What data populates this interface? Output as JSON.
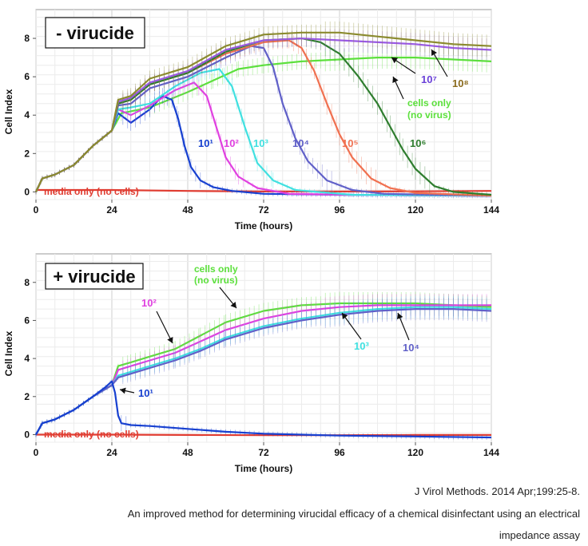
{
  "chart_data": [
    {
      "type": "line",
      "title": "- virucide",
      "xlabel": "Time (hours)",
      "ylabel": "Cell Index",
      "xlim": [
        0,
        144
      ],
      "ylim": [
        -0.4,
        9.5
      ],
      "xticks": [
        "0",
        "24",
        "48",
        "72",
        "96",
        "120",
        "144"
      ],
      "yticks": [
        "0",
        "2",
        "4",
        "6",
        "8"
      ],
      "grid": true,
      "series": [
        {
          "name": "media only (no cells)",
          "color": "#e03c31",
          "x": [
            0,
            24,
            48,
            72,
            96,
            120,
            144
          ],
          "y": [
            0.1,
            0.1,
            0.05,
            0.02,
            0.02,
            0.03,
            0.05
          ]
        },
        {
          "name": "cells only (no virus)",
          "color": "#5ce03c",
          "x": [
            0,
            2,
            6,
            12,
            18,
            24,
            27,
            30,
            36,
            42,
            48,
            56,
            64,
            72,
            84,
            96,
            108,
            120,
            132,
            144
          ],
          "y": [
            0,
            0.7,
            0.9,
            1.4,
            2.4,
            3.2,
            4.1,
            4.2,
            4.4,
            4.8,
            5.2,
            5.8,
            6.4,
            6.6,
            6.8,
            6.9,
            7.0,
            7.0,
            6.9,
            6.8
          ]
        },
        {
          "name": "10¹",
          "color": "#1740d0",
          "x": [
            0,
            2,
            6,
            12,
            18,
            24,
            26,
            30,
            36,
            40,
            43,
            45,
            47,
            49,
            52,
            56,
            62,
            72,
            96,
            144
          ],
          "y": [
            0,
            0.7,
            0.9,
            1.4,
            2.4,
            3.2,
            4.1,
            3.6,
            4.3,
            5.0,
            4.8,
            3.8,
            2.4,
            1.3,
            0.6,
            0.25,
            0.05,
            -0.1,
            -0.15,
            -0.2
          ]
        },
        {
          "name": "10²",
          "color": "#e040e0",
          "x": [
            0,
            2,
            6,
            12,
            18,
            24,
            26,
            30,
            36,
            44,
            50,
            54,
            57,
            60,
            64,
            70,
            80,
            100,
            144
          ],
          "y": [
            0,
            0.7,
            0.9,
            1.4,
            2.4,
            3.2,
            4.3,
            4.0,
            4.5,
            5.3,
            5.7,
            5.0,
            3.4,
            1.8,
            0.8,
            0.2,
            -0.1,
            -0.15,
            -0.2
          ]
        },
        {
          "name": "10³",
          "color": "#40e0e0",
          "x": [
            0,
            2,
            6,
            12,
            18,
            24,
            26,
            30,
            36,
            44,
            52,
            58,
            62,
            66,
            70,
            75,
            82,
            100,
            144
          ],
          "y": [
            0,
            0.7,
            0.9,
            1.4,
            2.4,
            3.2,
            4.3,
            4.4,
            4.6,
            5.5,
            6.2,
            6.4,
            5.5,
            3.4,
            1.5,
            0.6,
            0.1,
            -0.15,
            -0.2
          ]
        },
        {
          "name": "10⁴",
          "color": "#6060c8",
          "x": [
            0,
            2,
            6,
            12,
            18,
            24,
            26,
            30,
            36,
            48,
            60,
            68,
            72,
            75,
            78,
            82,
            86,
            92,
            100,
            110,
            144
          ],
          "y": [
            0,
            0.7,
            0.9,
            1.4,
            2.4,
            3.2,
            4.5,
            4.6,
            5.4,
            6.0,
            7.0,
            7.6,
            7.5,
            6.5,
            4.6,
            2.8,
            1.6,
            0.6,
            0.1,
            -0.1,
            -0.2
          ]
        },
        {
          "name": "10⁵",
          "color": "#f07050",
          "x": [
            0,
            2,
            6,
            12,
            18,
            24,
            26,
            30,
            36,
            48,
            60,
            72,
            80,
            84,
            88,
            92,
            96,
            100,
            106,
            112,
            120,
            144
          ],
          "y": [
            0,
            0.7,
            0.9,
            1.4,
            2.4,
            3.2,
            4.6,
            4.8,
            5.6,
            6.2,
            7.2,
            7.8,
            7.9,
            7.5,
            6.3,
            4.6,
            3.0,
            1.8,
            0.7,
            0.2,
            -0.05,
            -0.2
          ]
        },
        {
          "name": "10⁶",
          "color": "#2e7d2e",
          "x": [
            0,
            2,
            6,
            12,
            18,
            24,
            26,
            30,
            36,
            48,
            60,
            72,
            84,
            90,
            96,
            102,
            108,
            112,
            116,
            120,
            126,
            132,
            144
          ],
          "y": [
            0,
            0.7,
            0.9,
            1.4,
            2.4,
            3.2,
            4.6,
            4.8,
            5.6,
            6.2,
            7.3,
            7.9,
            8.0,
            7.8,
            7.2,
            6.0,
            4.6,
            3.4,
            2.2,
            1.2,
            0.3,
            0.0,
            -0.15
          ]
        },
        {
          "name": "10⁷",
          "color": "#9a58e8",
          "x": [
            0,
            2,
            6,
            12,
            18,
            24,
            26,
            30,
            36,
            48,
            60,
            72,
            84,
            96,
            108,
            120,
            132,
            144
          ],
          "y": [
            0,
            0.7,
            0.9,
            1.4,
            2.4,
            3.2,
            4.7,
            4.9,
            5.7,
            6.3,
            7.4,
            7.9,
            8.0,
            7.9,
            7.8,
            7.7,
            7.5,
            7.4
          ]
        },
        {
          "name": "10⁸",
          "color": "#8b8b2e",
          "x": [
            0,
            2,
            6,
            12,
            18,
            24,
            26,
            30,
            36,
            48,
            60,
            72,
            84,
            96,
            108,
            120,
            132,
            144
          ],
          "y": [
            0,
            0.7,
            0.9,
            1.4,
            2.4,
            3.2,
            4.8,
            5.0,
            5.9,
            6.5,
            7.6,
            8.2,
            8.3,
            8.3,
            8.1,
            7.9,
            7.7,
            7.6
          ]
        }
      ],
      "annotations": [
        "media only (no cells)",
        "cells only",
        "(no virus)",
        "10¹",
        "10²",
        "10³",
        "10⁴",
        "10⁵",
        "10⁶",
        "10⁷",
        "10⁸"
      ]
    },
    {
      "type": "line",
      "title": "+ virucide",
      "xlabel": "Time (hours)",
      "ylabel": "Cell Index",
      "xlim": [
        0,
        144
      ],
      "ylim": [
        -0.4,
        9.5
      ],
      "xticks": [
        "0",
        "24",
        "48",
        "72",
        "96",
        "120",
        "144"
      ],
      "yticks": [
        "0",
        "2",
        "4",
        "6",
        "8"
      ],
      "grid": true,
      "series": [
        {
          "name": "media only (no cells)",
          "color": "#e03c31",
          "x": [
            0,
            24,
            48,
            72,
            96,
            120,
            144
          ],
          "y": [
            0.0,
            0.0,
            -0.02,
            -0.03,
            -0.03,
            -0.02,
            -0.02
          ]
        },
        {
          "name": "cells only (no virus)",
          "color": "#5ce03c",
          "x": [
            0,
            2,
            6,
            12,
            18,
            24,
            26,
            30,
            36,
            44,
            52,
            60,
            72,
            84,
            96,
            108,
            120,
            132,
            144
          ],
          "y": [
            0,
            0.6,
            0.8,
            1.3,
            2.0,
            2.6,
            3.6,
            3.8,
            4.1,
            4.5,
            5.2,
            5.9,
            6.5,
            6.8,
            6.9,
            6.9,
            6.9,
            6.8,
            6.7
          ]
        },
        {
          "name": "10²",
          "color": "#e040e0",
          "x": [
            0,
            2,
            6,
            12,
            18,
            24,
            26,
            30,
            36,
            44,
            52,
            60,
            72,
            84,
            96,
            108,
            120,
            132,
            144
          ],
          "y": [
            0,
            0.6,
            0.8,
            1.3,
            2.0,
            2.6,
            3.4,
            3.6,
            3.9,
            4.3,
            4.9,
            5.5,
            6.1,
            6.5,
            6.7,
            6.8,
            6.8,
            6.8,
            6.8
          ]
        },
        {
          "name": "10³",
          "color": "#40e0e0",
          "x": [
            0,
            2,
            6,
            12,
            18,
            24,
            26,
            30,
            36,
            44,
            52,
            60,
            72,
            84,
            96,
            108,
            120,
            132,
            144
          ],
          "y": [
            0,
            0.6,
            0.8,
            1.3,
            2.0,
            2.6,
            3.1,
            3.3,
            3.6,
            4.0,
            4.5,
            5.1,
            5.7,
            6.1,
            6.4,
            6.6,
            6.7,
            6.7,
            6.6
          ]
        },
        {
          "name": "10⁴",
          "color": "#6060c8",
          "x": [
            0,
            2,
            6,
            12,
            18,
            24,
            26,
            30,
            36,
            44,
            52,
            60,
            72,
            84,
            96,
            108,
            120,
            132,
            144
          ],
          "y": [
            0,
            0.6,
            0.8,
            1.3,
            2.0,
            2.6,
            3.0,
            3.2,
            3.5,
            3.9,
            4.4,
            5.0,
            5.6,
            6.0,
            6.3,
            6.5,
            6.6,
            6.6,
            6.5
          ]
        },
        {
          "name": "10¹",
          "color": "#1740d0",
          "x": [
            0,
            2,
            6,
            12,
            18,
            22,
            24,
            25,
            26,
            27,
            30,
            36,
            48,
            60,
            72,
            96,
            120,
            144
          ],
          "y": [
            0,
            0.6,
            0.8,
            1.3,
            2.0,
            2.5,
            2.8,
            2.2,
            1.0,
            0.6,
            0.5,
            0.45,
            0.3,
            0.15,
            0.05,
            -0.05,
            -0.1,
            -0.15
          ]
        }
      ],
      "annotations": [
        "media only (no cells)",
        "cells only",
        "(no virus)",
        "10¹",
        "10²",
        "10³",
        "10⁴"
      ]
    }
  ],
  "caption": {
    "reference": "J Virol Methods. 2014 Apr;199:25-8.",
    "title_line1": "An improved method for determining virucidal efficacy of a chemical disinfectant using an electrical",
    "title_line2": "impedance assay"
  }
}
